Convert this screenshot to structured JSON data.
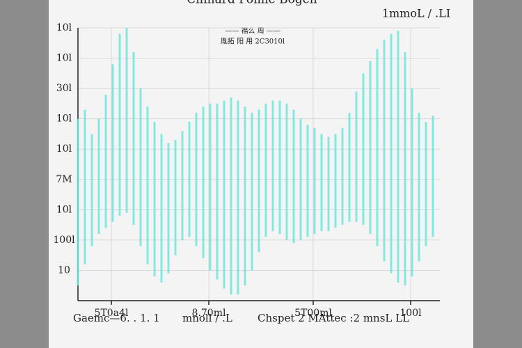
{
  "chart_data": {
    "type": "range",
    "title": "Cinnard Pomie Bogen",
    "unit_label": "1mmoL / .LI",
    "legend": [
      "—— 福么 周 ——",
      "胤拓 阳 用 2C3010l"
    ],
    "footer": [
      "Gaemc—6. . 1. 1",
      "mnoll / .L",
      "Chspet 2 MAttec :2 mnsL LL"
    ],
    "color": "#6fe6dc",
    "grid": true,
    "xlim": [
      0,
      520
    ],
    "ylim": [
      0,
      9
    ],
    "xticks": [
      {
        "value": 48,
        "label": "5T0a4l"
      },
      {
        "value": 188,
        "label": "8.70ml"
      },
      {
        "value": 338,
        "label": "5T00ml"
      },
      {
        "value": 478,
        "label": "100l"
      }
    ],
    "yticks": [
      {
        "value": 1,
        "label": "10"
      },
      {
        "value": 2,
        "label": "100l"
      },
      {
        "value": 3,
        "label": "10l"
      },
      {
        "value": 4,
        "label": "7M"
      },
      {
        "value": 5,
        "label": "10l"
      },
      {
        "value": 6,
        "label": "10l"
      },
      {
        "value": 7,
        "label": "30l"
      },
      {
        "value": 8,
        "label": "10l"
      },
      {
        "value": 9,
        "label": "10l"
      }
    ],
    "x": [
      0,
      10,
      20,
      30,
      40,
      50,
      60,
      70,
      80,
      90,
      100,
      110,
      120,
      130,
      140,
      150,
      160,
      170,
      180,
      190,
      200,
      210,
      220,
      230,
      240,
      250,
      260,
      270,
      280,
      290,
      300,
      310,
      320,
      330,
      340,
      350,
      360,
      370,
      380,
      390,
      400,
      410,
      420,
      430,
      440,
      450,
      460,
      470,
      480,
      490,
      500,
      510
    ],
    "upper": [
      6.0,
      6.3,
      5.5,
      6.0,
      6.8,
      7.8,
      8.8,
      9.0,
      8.2,
      7.0,
      6.4,
      5.9,
      5.5,
      5.2,
      5.3,
      5.6,
      5.9,
      6.2,
      6.4,
      6.5,
      6.5,
      6.6,
      6.7,
      6.6,
      6.4,
      6.2,
      6.3,
      6.5,
      6.6,
      6.6,
      6.5,
      6.3,
      6.0,
      5.8,
      5.7,
      5.5,
      5.4,
      5.5,
      5.7,
      6.2,
      6.9,
      7.5,
      7.9,
      8.3,
      8.6,
      8.8,
      8.9,
      8.2,
      7.0,
      6.2,
      5.9,
      6.1
    ],
    "lower": [
      0.5,
      1.2,
      1.8,
      2.2,
      2.4,
      2.6,
      2.8,
      2.9,
      2.5,
      1.8,
      1.2,
      0.8,
      0.6,
      0.9,
      1.5,
      2.0,
      2.1,
      1.8,
      1.4,
      1.0,
      0.7,
      0.4,
      0.2,
      0.2,
      0.5,
      1.0,
      1.6,
      2.1,
      2.3,
      2.2,
      2.0,
      1.9,
      2.0,
      2.1,
      2.2,
      2.3,
      2.3,
      2.4,
      2.5,
      2.6,
      2.6,
      2.5,
      2.2,
      1.8,
      1.3,
      0.9,
      0.6,
      0.5,
      0.8,
      1.3,
      1.8,
      2.1
    ]
  }
}
